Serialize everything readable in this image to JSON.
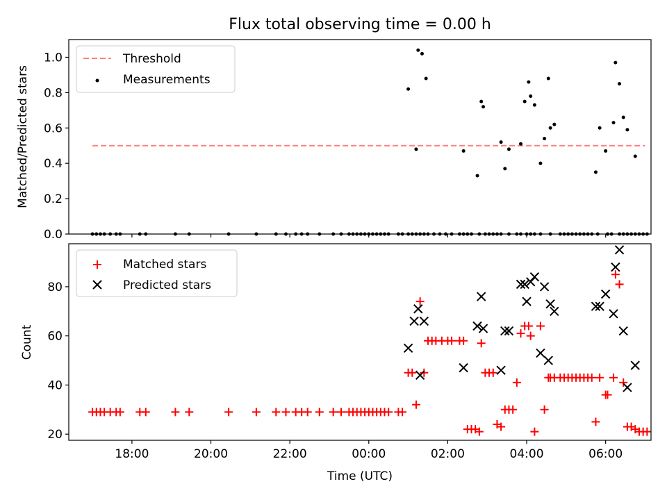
{
  "figure_title": "Flux total observing time = 0.00 h",
  "x_axis_label": "Time (UTC)",
  "x_tick_labels": [
    "18:00",
    "20:00",
    "22:00",
    "00:00",
    "02:00",
    "04:00",
    "06:00"
  ],
  "colors": {
    "threshold": "#ff7f7f",
    "measurement": "#000000",
    "matched": "#ff0000",
    "predicted": "#000000"
  },
  "chart_data": [
    {
      "type": "scatter",
      "title": "Flux total observing time = 0.00 h",
      "xlabel": "",
      "ylabel": "Matched/Predicted stars",
      "xlim": [
        16.4,
        31.15
      ],
      "ylim": [
        0,
        1.1
      ],
      "yticks": [
        0.0,
        0.2,
        0.4,
        0.6,
        0.8,
        1.0
      ],
      "ytick_labels": [
        "0.0",
        "0.2",
        "0.4",
        "0.6",
        "0.8",
        "1.0"
      ],
      "grid": false,
      "legend_position": "upper-left",
      "threshold": {
        "name": "Threshold",
        "value": 0.5,
        "x_range": [
          17.0,
          31.0
        ]
      },
      "series": [
        {
          "name": "Measurements",
          "x": [
            17.0,
            17.1,
            17.2,
            17.3,
            17.45,
            17.6,
            17.7,
            18.2,
            18.35,
            19.1,
            19.45,
            20.45,
            21.15,
            21.65,
            21.9,
            22.15,
            22.3,
            22.45,
            22.75,
            23.1,
            23.3,
            23.5,
            23.6,
            23.7,
            23.8,
            23.9,
            24.0,
            24.1,
            24.2,
            24.3,
            24.4,
            24.5,
            24.75,
            24.85,
            25.0,
            25.1,
            25.2,
            25.3,
            25.4,
            25.5,
            25.65,
            25.8,
            25.95,
            26.1,
            26.3,
            26.4,
            26.5,
            26.6,
            26.8,
            26.95,
            27.05,
            27.15,
            27.25,
            27.35,
            27.55,
            27.75,
            27.85,
            28.0,
            28.1,
            28.2,
            28.35,
            28.6,
            28.85,
            28.95,
            29.05,
            29.15,
            29.25,
            29.35,
            29.45,
            29.55,
            29.65,
            29.8,
            30.05,
            30.15,
            30.35,
            30.45,
            30.55,
            30.65,
            30.75,
            30.85,
            30.95,
            31.05,
            25.0,
            25.2,
            25.25,
            25.35,
            25.45,
            26.4,
            26.75,
            26.85,
            26.9,
            27.35,
            27.45,
            27.55,
            27.85,
            27.95,
            28.05,
            28.1,
            28.2,
            28.35,
            28.45,
            28.55,
            28.6,
            28.7,
            29.75,
            29.85,
            30.0,
            30.2,
            30.25,
            30.35,
            30.45,
            30.55,
            30.75
          ],
          "y": [
            0,
            0,
            0,
            0,
            0,
            0,
            0,
            0,
            0,
            0,
            0,
            0,
            0,
            0,
            0,
            0,
            0,
            0,
            0,
            0,
            0,
            0,
            0,
            0,
            0,
            0,
            0,
            0,
            0,
            0,
            0,
            0,
            0,
            0,
            0,
            0,
            0,
            0,
            0,
            0,
            0,
            0,
            0,
            0,
            0,
            0,
            0,
            0,
            0,
            0,
            0,
            0,
            0,
            0,
            0,
            0,
            0,
            0,
            0,
            0,
            0,
            0,
            0,
            0,
            0,
            0,
            0,
            0,
            0,
            0,
            0,
            0,
            0,
            0,
            0,
            0,
            0,
            0,
            0,
            0,
            0,
            0,
            0.82,
            0.48,
            1.04,
            1.02,
            0.88,
            0.47,
            0.33,
            0.75,
            0.72,
            0.52,
            0.37,
            0.48,
            0.51,
            0.75,
            0.86,
            0.78,
            0.73,
            0.4,
            0.54,
            0.88,
            0.6,
            0.62,
            0.35,
            0.6,
            0.47,
            0.63,
            0.97,
            0.85,
            0.66,
            0.59,
            0.44
          ]
        }
      ]
    },
    {
      "type": "scatter",
      "title": "",
      "xlabel": "Time (UTC)",
      "ylabel": "Count",
      "xlim": [
        16.4,
        31.15
      ],
      "ylim": [
        17.5,
        97.5
      ],
      "yticks": [
        20,
        40,
        60,
        80
      ],
      "ytick_labels": [
        "20",
        "40",
        "60",
        "80"
      ],
      "grid": false,
      "legend_position": "upper-left",
      "series": [
        {
          "name": "Matched stars",
          "marker": "plus",
          "x": [
            17.0,
            17.1,
            17.2,
            17.3,
            17.45,
            17.6,
            17.7,
            18.2,
            18.35,
            19.1,
            19.45,
            20.45,
            21.15,
            21.65,
            21.9,
            22.15,
            22.3,
            22.45,
            22.75,
            23.1,
            23.3,
            23.5,
            23.6,
            23.7,
            23.8,
            23.9,
            24.0,
            24.1,
            24.2,
            24.3,
            24.4,
            24.5,
            24.75,
            24.85,
            25.0,
            25.1,
            25.2,
            25.3,
            25.4,
            25.5,
            25.6,
            25.7,
            25.85,
            26.0,
            26.1,
            26.3,
            26.4,
            26.5,
            26.6,
            26.7,
            26.8,
            26.85,
            26.95,
            27.05,
            27.15,
            27.25,
            27.35,
            27.45,
            27.55,
            27.65,
            27.75,
            27.85,
            27.95,
            28.05,
            28.1,
            28.2,
            28.35,
            28.45,
            28.55,
            28.6,
            28.7,
            28.85,
            28.95,
            29.05,
            29.15,
            29.25,
            29.35,
            29.45,
            29.55,
            29.65,
            29.75,
            29.85,
            30.0,
            30.05,
            30.2,
            30.25,
            30.35,
            30.45,
            30.55,
            30.65,
            30.75,
            30.85,
            30.95,
            31.05
          ],
          "y": [
            29,
            29,
            29,
            29,
            29,
            29,
            29,
            29,
            29,
            29,
            29,
            29,
            29,
            29,
            29,
            29,
            29,
            29,
            29,
            29,
            29,
            29,
            29,
            29,
            29,
            29,
            29,
            29,
            29,
            29,
            29,
            29,
            29,
            29,
            45,
            45,
            32,
            74,
            45,
            58,
            58,
            58,
            58,
            58,
            58,
            58,
            58,
            22,
            22,
            22,
            21,
            57,
            45,
            45,
            45,
            24,
            23,
            30,
            30,
            30,
            41,
            61,
            64,
            64,
            60,
            21,
            64,
            30,
            43,
            43,
            43,
            43,
            43,
            43,
            43,
            43,
            43,
            43,
            43,
            43,
            25,
            43,
            36,
            36,
            43,
            85,
            81,
            41,
            23,
            23,
            22,
            21,
            21,
            21
          ]
        },
        {
          "name": "Predicted stars",
          "marker": "x",
          "x": [
            25.0,
            25.15,
            25.25,
            25.3,
            25.4,
            26.4,
            26.75,
            26.85,
            26.9,
            27.35,
            27.45,
            27.55,
            27.85,
            27.95,
            28.0,
            28.1,
            28.2,
            28.35,
            28.45,
            28.55,
            28.6,
            28.7,
            29.75,
            29.85,
            30.0,
            30.2,
            30.25,
            30.35,
            30.45,
            30.55,
            30.75
          ],
          "y": [
            55,
            66,
            71,
            44,
            66,
            47,
            64,
            76,
            63,
            46,
            62,
            62,
            81,
            81,
            74,
            82,
            84,
            53,
            80,
            50,
            73,
            70,
            72,
            72,
            77,
            69,
            88,
            95,
            62,
            39,
            48
          ]
        }
      ]
    }
  ]
}
